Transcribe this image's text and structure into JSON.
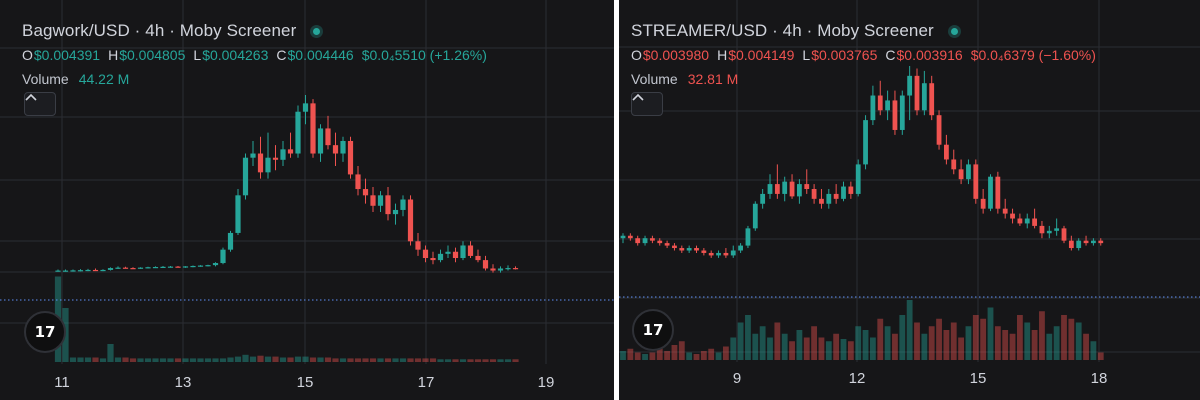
{
  "charts": [
    {
      "header": {
        "title": "Bagwork/USD · 4h · Moby Screener",
        "open_label": "O",
        "open": "$0.004391",
        "high_label": "H",
        "high": "$0.004805",
        "low_label": "L",
        "low": "$0.004263",
        "close_label": "C",
        "close": "$0.004446",
        "change": "$0.0₄5510 (+1.26%)",
        "direction": "up",
        "volume_label": "Volume",
        "volume": "44.22 M"
      },
      "collapse_icon": "chevron-up-icon",
      "logo_icon": "tradingview-logo-icon",
      "logo_text": "17"
    },
    {
      "header": {
        "title": "STREAMER/USD · 4h · Moby Screener",
        "open_label": "O",
        "open": "$0.003980",
        "high_label": "H",
        "high": "$0.004149",
        "low_label": "L",
        "low": "$0.003765",
        "close_label": "C",
        "close": "$0.003916",
        "change": "$0.0₄6379 (−1.60%)",
        "direction": "down",
        "volume_label": "Volume",
        "volume": "32.81 M"
      },
      "collapse_icon": "chevron-up-icon",
      "logo_icon": "tradingview-logo-icon",
      "logo_text": "17"
    }
  ],
  "colors": {
    "up": "#26a69a",
    "down": "#ef5350",
    "background": "#161618",
    "grid": "#2b2d33",
    "last_price_line": "#5d8ff5"
  },
  "chart_data": [
    {
      "type": "candlestick",
      "title": "Bagwork/USD · 4h · Moby Screener",
      "x_tick_labels": [
        "11",
        "13",
        "15",
        "17",
        "19"
      ],
      "x_range": [
        10.3,
        19.6
      ],
      "y_range": [
        0.0,
        1.0
      ],
      "y_unit": "relative (axis unlabeled)",
      "grid": true,
      "candles": [
        [
          0.16,
          0.165,
          0.155,
          0.16
        ],
        [
          0.16,
          0.165,
          0.155,
          0.16
        ],
        [
          0.16,
          0.165,
          0.155,
          0.161
        ],
        [
          0.161,
          0.167,
          0.156,
          0.162
        ],
        [
          0.162,
          0.168,
          0.157,
          0.163
        ],
        [
          0.163,
          0.17,
          0.158,
          0.162
        ],
        [
          0.162,
          0.166,
          0.157,
          0.163
        ],
        [
          0.163,
          0.175,
          0.16,
          0.172
        ],
        [
          0.172,
          0.18,
          0.168,
          0.174
        ],
        [
          0.174,
          0.178,
          0.17,
          0.172
        ],
        [
          0.172,
          0.176,
          0.168,
          0.17
        ],
        [
          0.17,
          0.176,
          0.168,
          0.174
        ],
        [
          0.174,
          0.178,
          0.17,
          0.176
        ],
        [
          0.176,
          0.18,
          0.172,
          0.177
        ],
        [
          0.177,
          0.182,
          0.173,
          0.178
        ],
        [
          0.178,
          0.182,
          0.174,
          0.179
        ],
        [
          0.179,
          0.182,
          0.175,
          0.177
        ],
        [
          0.177,
          0.181,
          0.173,
          0.18
        ],
        [
          0.18,
          0.184,
          0.176,
          0.182
        ],
        [
          0.182,
          0.186,
          0.178,
          0.184
        ],
        [
          0.184,
          0.188,
          0.18,
          0.186
        ],
        [
          0.186,
          0.2,
          0.18,
          0.196
        ],
        [
          0.196,
          0.27,
          0.19,
          0.26
        ],
        [
          0.26,
          0.35,
          0.25,
          0.34
        ],
        [
          0.34,
          0.55,
          0.33,
          0.52
        ],
        [
          0.52,
          0.72,
          0.5,
          0.7
        ],
        [
          0.7,
          0.78,
          0.66,
          0.72
        ],
        [
          0.72,
          0.8,
          0.6,
          0.63
        ],
        [
          0.63,
          0.82,
          0.6,
          0.7
        ],
        [
          0.7,
          0.76,
          0.64,
          0.69
        ],
        [
          0.69,
          0.78,
          0.66,
          0.74
        ],
        [
          0.74,
          0.82,
          0.7,
          0.72
        ],
        [
          0.72,
          0.95,
          0.7,
          0.92
        ],
        [
          0.92,
          1.0,
          0.86,
          0.96
        ],
        [
          0.96,
          0.98,
          0.7,
          0.72
        ],
        [
          0.72,
          0.86,
          0.68,
          0.84
        ],
        [
          0.84,
          0.9,
          0.74,
          0.76
        ],
        [
          0.76,
          0.82,
          0.66,
          0.72
        ],
        [
          0.72,
          0.8,
          0.68,
          0.78
        ],
        [
          0.78,
          0.8,
          0.6,
          0.62
        ],
        [
          0.62,
          0.66,
          0.52,
          0.55
        ],
        [
          0.55,
          0.6,
          0.48,
          0.52
        ],
        [
          0.52,
          0.56,
          0.44,
          0.47
        ],
        [
          0.47,
          0.54,
          0.44,
          0.52
        ],
        [
          0.52,
          0.56,
          0.4,
          0.43
        ],
        [
          0.43,
          0.48,
          0.38,
          0.45
        ],
        [
          0.45,
          0.52,
          0.42,
          0.5
        ],
        [
          0.5,
          0.52,
          0.28,
          0.3
        ],
        [
          0.3,
          0.34,
          0.23,
          0.26
        ],
        [
          0.26,
          0.28,
          0.2,
          0.22
        ],
        [
          0.22,
          0.25,
          0.19,
          0.21
        ],
        [
          0.21,
          0.26,
          0.2,
          0.24
        ],
        [
          0.24,
          0.28,
          0.22,
          0.25
        ],
        [
          0.25,
          0.27,
          0.2,
          0.22
        ],
        [
          0.22,
          0.3,
          0.21,
          0.28
        ],
        [
          0.28,
          0.3,
          0.22,
          0.23
        ],
        [
          0.23,
          0.26,
          0.2,
          0.21
        ],
        [
          0.21,
          0.23,
          0.16,
          0.17
        ],
        [
          0.17,
          0.19,
          0.15,
          0.16
        ],
        [
          0.16,
          0.18,
          0.15,
          0.17
        ],
        [
          0.17,
          0.185,
          0.16,
          0.172
        ],
        [
          0.172,
          0.18,
          0.165,
          0.17
        ]
      ],
      "volume": [
        0.95,
        0.6,
        0.05,
        0.05,
        0.05,
        0.05,
        0.04,
        0.2,
        0.05,
        0.05,
        0.04,
        0.04,
        0.04,
        0.04,
        0.04,
        0.04,
        0.04,
        0.04,
        0.04,
        0.04,
        0.04,
        0.04,
        0.04,
        0.05,
        0.06,
        0.08,
        0.06,
        0.07,
        0.06,
        0.06,
        0.05,
        0.05,
        0.06,
        0.06,
        0.05,
        0.05,
        0.05,
        0.04,
        0.04,
        0.04,
        0.04,
        0.04,
        0.04,
        0.04,
        0.04,
        0.04,
        0.04,
        0.04,
        0.04,
        0.04,
        0.04,
        0.03,
        0.03,
        0.03,
        0.03,
        0.03,
        0.03,
        0.03,
        0.03,
        0.03,
        0.03,
        0.03
      ]
    },
    {
      "type": "candlestick",
      "title": "STREAMER/USD · 4h · Moby Screener",
      "x_tick_labels": [
        "9",
        "12",
        "15",
        "18"
      ],
      "x_range": [
        6.2,
        20.1
      ],
      "y_range": [
        0.0,
        1.0
      ],
      "y_unit": "relative (axis unlabeled)",
      "grid": true,
      "candles": [
        [
          0.3,
          0.32,
          0.28,
          0.31
        ],
        [
          0.31,
          0.32,
          0.29,
          0.3
        ],
        [
          0.3,
          0.31,
          0.27,
          0.28
        ],
        [
          0.28,
          0.31,
          0.27,
          0.3
        ],
        [
          0.3,
          0.31,
          0.28,
          0.29
        ],
        [
          0.29,
          0.3,
          0.27,
          0.28
        ],
        [
          0.28,
          0.29,
          0.26,
          0.27
        ],
        [
          0.27,
          0.28,
          0.25,
          0.26
        ],
        [
          0.26,
          0.27,
          0.24,
          0.25
        ],
        [
          0.25,
          0.27,
          0.24,
          0.26
        ],
        [
          0.26,
          0.27,
          0.24,
          0.25
        ],
        [
          0.25,
          0.26,
          0.23,
          0.24
        ],
        [
          0.24,
          0.25,
          0.22,
          0.23
        ],
        [
          0.23,
          0.25,
          0.22,
          0.24
        ],
        [
          0.24,
          0.26,
          0.22,
          0.23
        ],
        [
          0.23,
          0.27,
          0.22,
          0.25
        ],
        [
          0.25,
          0.28,
          0.24,
          0.27
        ],
        [
          0.27,
          0.35,
          0.26,
          0.34
        ],
        [
          0.34,
          0.45,
          0.33,
          0.44
        ],
        [
          0.44,
          0.5,
          0.42,
          0.48
        ],
        [
          0.48,
          0.56,
          0.46,
          0.52
        ],
        [
          0.52,
          0.6,
          0.46,
          0.48
        ],
        [
          0.48,
          0.55,
          0.45,
          0.53
        ],
        [
          0.53,
          0.56,
          0.46,
          0.47
        ],
        [
          0.47,
          0.54,
          0.44,
          0.52
        ],
        [
          0.52,
          0.58,
          0.48,
          0.5
        ],
        [
          0.5,
          0.52,
          0.44,
          0.46
        ],
        [
          0.46,
          0.5,
          0.42,
          0.44
        ],
        [
          0.44,
          0.5,
          0.42,
          0.48
        ],
        [
          0.48,
          0.52,
          0.44,
          0.46
        ],
        [
          0.46,
          0.53,
          0.45,
          0.51
        ],
        [
          0.51,
          0.53,
          0.46,
          0.48
        ],
        [
          0.48,
          0.62,
          0.47,
          0.6
        ],
        [
          0.6,
          0.8,
          0.58,
          0.78
        ],
        [
          0.78,
          0.92,
          0.76,
          0.88
        ],
        [
          0.88,
          0.94,
          0.8,
          0.82
        ],
        [
          0.82,
          0.9,
          0.78,
          0.86
        ],
        [
          0.86,
          0.9,
          0.72,
          0.74
        ],
        [
          0.74,
          0.9,
          0.72,
          0.88
        ],
        [
          0.88,
          1.0,
          0.78,
          0.96
        ],
        [
          0.96,
          0.99,
          0.8,
          0.82
        ],
        [
          0.82,
          0.98,
          0.8,
          0.93
        ],
        [
          0.93,
          0.96,
          0.78,
          0.8
        ],
        [
          0.8,
          0.82,
          0.66,
          0.68
        ],
        [
          0.68,
          0.72,
          0.6,
          0.62
        ],
        [
          0.62,
          0.66,
          0.56,
          0.58
        ],
        [
          0.58,
          0.62,
          0.52,
          0.54
        ],
        [
          0.54,
          0.62,
          0.52,
          0.6
        ],
        [
          0.6,
          0.62,
          0.44,
          0.46
        ],
        [
          0.46,
          0.5,
          0.4,
          0.42
        ],
        [
          0.42,
          0.56,
          0.41,
          0.55
        ],
        [
          0.55,
          0.57,
          0.4,
          0.42
        ],
        [
          0.42,
          0.46,
          0.38,
          0.4
        ],
        [
          0.4,
          0.42,
          0.36,
          0.38
        ],
        [
          0.38,
          0.4,
          0.35,
          0.36
        ],
        [
          0.36,
          0.4,
          0.34,
          0.38
        ],
        [
          0.38,
          0.42,
          0.34,
          0.35
        ],
        [
          0.35,
          0.37,
          0.3,
          0.32
        ],
        [
          0.32,
          0.35,
          0.3,
          0.33
        ],
        [
          0.33,
          0.38,
          0.31,
          0.34
        ],
        [
          0.34,
          0.35,
          0.28,
          0.29
        ],
        [
          0.29,
          0.31,
          0.25,
          0.26
        ],
        [
          0.26,
          0.3,
          0.25,
          0.29
        ],
        [
          0.29,
          0.31,
          0.27,
          0.28
        ],
        [
          0.28,
          0.3,
          0.27,
          0.29
        ],
        [
          0.29,
          0.3,
          0.27,
          0.28
        ]
      ],
      "volume": [
        0.12,
        0.15,
        0.1,
        0.08,
        0.1,
        0.18,
        0.12,
        0.2,
        0.25,
        0.1,
        0.08,
        0.12,
        0.15,
        0.1,
        0.18,
        0.3,
        0.5,
        0.6,
        0.35,
        0.45,
        0.3,
        0.5,
        0.35,
        0.25,
        0.4,
        0.3,
        0.45,
        0.3,
        0.25,
        0.35,
        0.28,
        0.25,
        0.45,
        0.4,
        0.3,
        0.55,
        0.45,
        0.35,
        0.6,
        0.8,
        0.5,
        0.35,
        0.45,
        0.55,
        0.4,
        0.5,
        0.3,
        0.45,
        0.6,
        0.55,
        0.7,
        0.45,
        0.4,
        0.35,
        0.6,
        0.5,
        0.4,
        0.65,
        0.35,
        0.45,
        0.6,
        0.55,
        0.5,
        0.35,
        0.25,
        0.1
      ]
    }
  ]
}
